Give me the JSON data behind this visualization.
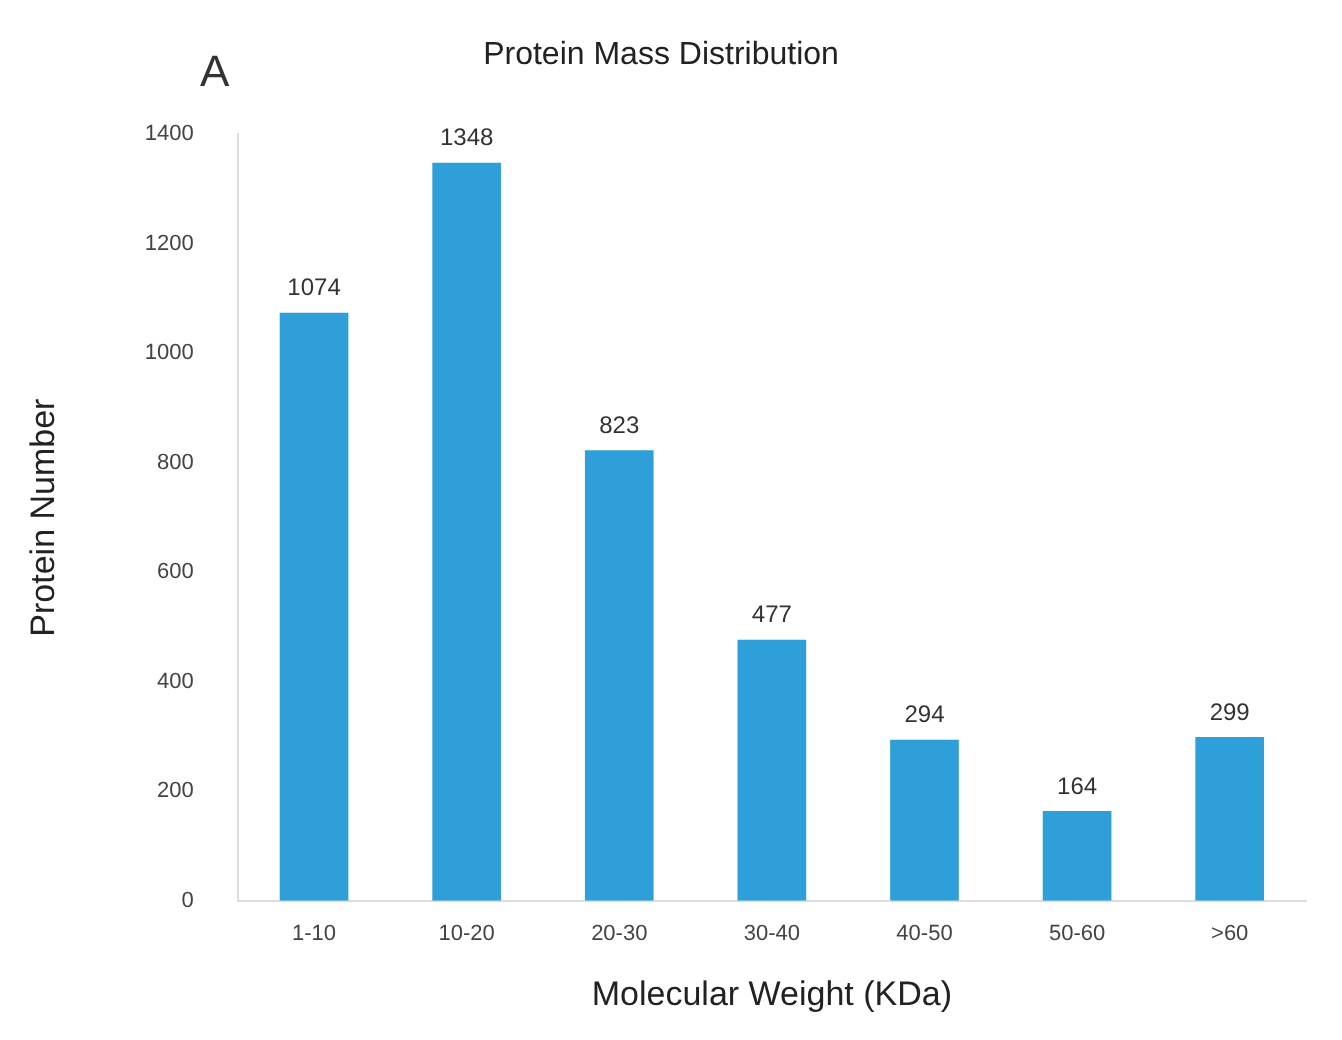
{
  "chart_data": {
    "type": "bar",
    "title": "Protein Mass Distribution",
    "xlabel": "Molecular Weight (KDa)",
    "ylabel": "Protein Number",
    "categories": [
      "1-10",
      "10-20",
      "20-30",
      "30-40",
      "40-50",
      "50-60",
      ">60"
    ],
    "values": [
      1074,
      1348,
      823,
      477,
      294,
      164,
      299
    ],
    "color": "#2e9fd9",
    "ylim": [
      0,
      1400
    ],
    "yticks": [
      0,
      200,
      400,
      600,
      800,
      1000,
      1200,
      1400
    ],
    "data_labels": true,
    "grid": false,
    "legend": false,
    "annotations": [
      "A"
    ]
  }
}
